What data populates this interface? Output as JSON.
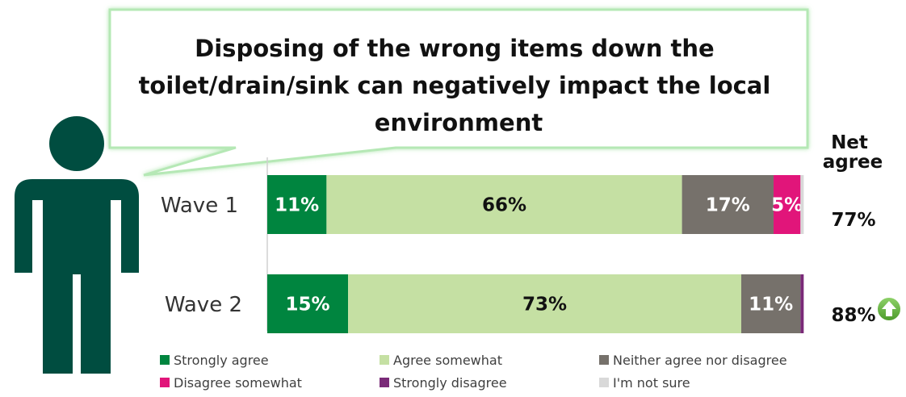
{
  "chart_data": {
    "type": "bar",
    "orientation": "horizontal",
    "stacked": true,
    "title": "Disposing of the wrong items down the toilet/drain/sink can negatively impact the local environment",
    "title_lines": [
      "Disposing of the wrong items down the",
      "toilet/drain/sink can negatively impact the local",
      "environment"
    ],
    "categories": [
      "Wave 1",
      "Wave 2"
    ],
    "xlim": [
      0,
      100
    ],
    "series": [
      {
        "name": "Strongly agree",
        "color": "#00853f",
        "values": [
          11,
          15
        ],
        "labels": [
          "11%",
          "15%"
        ],
        "label_color": "#ffffff"
      },
      {
        "name": "Agree somewhat",
        "color": "#c5e0a3",
        "values": [
          66,
          73
        ],
        "labels": [
          "66%",
          "73%"
        ],
        "label_color": "#111111"
      },
      {
        "name": "Neither agree nor disagree",
        "color": "#76716b",
        "values": [
          17,
          11
        ],
        "labels": [
          "17%",
          "11%"
        ],
        "label_color": "#ffffff"
      },
      {
        "name": "Disagree somewhat",
        "color": "#e1157a",
        "values": [
          5,
          0
        ],
        "labels": [
          "5%",
          ""
        ],
        "label_color": "#ffffff"
      },
      {
        "name": "Strongly disagree",
        "color": "#7a2a78",
        "values": [
          0,
          0.6
        ],
        "labels": [
          "",
          ""
        ],
        "label_color": "#ffffff"
      },
      {
        "name": "I'm not sure",
        "color": "#d9d9d9",
        "values": [
          0.6,
          0
        ],
        "labels": [
          "",
          ""
        ],
        "label_color": "#111111"
      }
    ],
    "net_agree": {
      "header_lines": [
        "Net",
        "agree"
      ],
      "values": [
        "77%",
        "88%"
      ],
      "increase_marker": [
        false,
        true
      ]
    },
    "legend": {
      "placement": "bottom",
      "columns": 3
    }
  },
  "icons": {
    "person": "person-icon",
    "increase": "arrow-up-icon"
  },
  "colors": {
    "person": "#004d40",
    "bubble_border": "#a8e4a8",
    "up_arrow": "#6ab04c"
  }
}
